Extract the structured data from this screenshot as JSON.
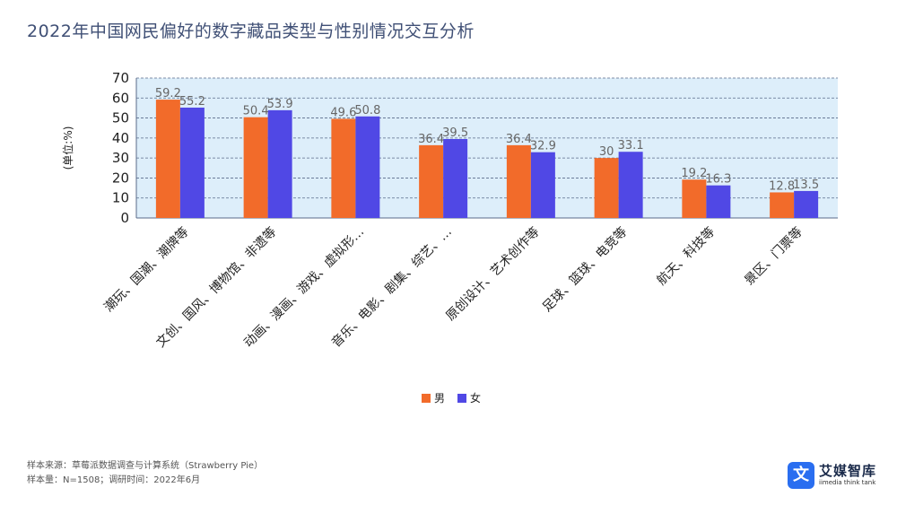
{
  "title": "2022年中国网民偏好的数字藏品类型与性别情况交互分析",
  "footer": {
    "source": "样本来源：草莓派数据调查与计算系统（Strawberry Pie）",
    "sample": "样本量：N=1508；调研时间：2022年6月"
  },
  "logo": {
    "mark": "文",
    "name": "艾媒智库",
    "sub": "iimedia think tank"
  },
  "colors": {
    "male": "#f26b2a",
    "female": "#5048e5",
    "plot_bg": "#ddeefa",
    "grid": "#5a6b8a"
  },
  "chart_data": {
    "type": "bar",
    "ylabel": "(单位:%)",
    "ylim": [
      0,
      70
    ],
    "yticks": [
      0,
      10,
      20,
      30,
      40,
      50,
      60,
      70
    ],
    "grid": true,
    "legend_position": "bottom",
    "categories": [
      "潮玩、国潮、潮牌等",
      "文创、国风、博物馆、非遗等",
      "动画、漫画、游戏、虚拟形…",
      "音乐、电影、剧集、综艺、…",
      "原创设计、艺术创作等",
      "足球、篮球、电竞等",
      "航天、科技等",
      "景区、门票等"
    ],
    "series": [
      {
        "name": "男",
        "values": [
          59.2,
          50.4,
          49.6,
          36.4,
          36.4,
          30,
          19.2,
          12.8
        ]
      },
      {
        "name": "女",
        "values": [
          55.2,
          53.9,
          50.8,
          39.5,
          32.9,
          33.1,
          16.3,
          13.5
        ]
      }
    ]
  }
}
